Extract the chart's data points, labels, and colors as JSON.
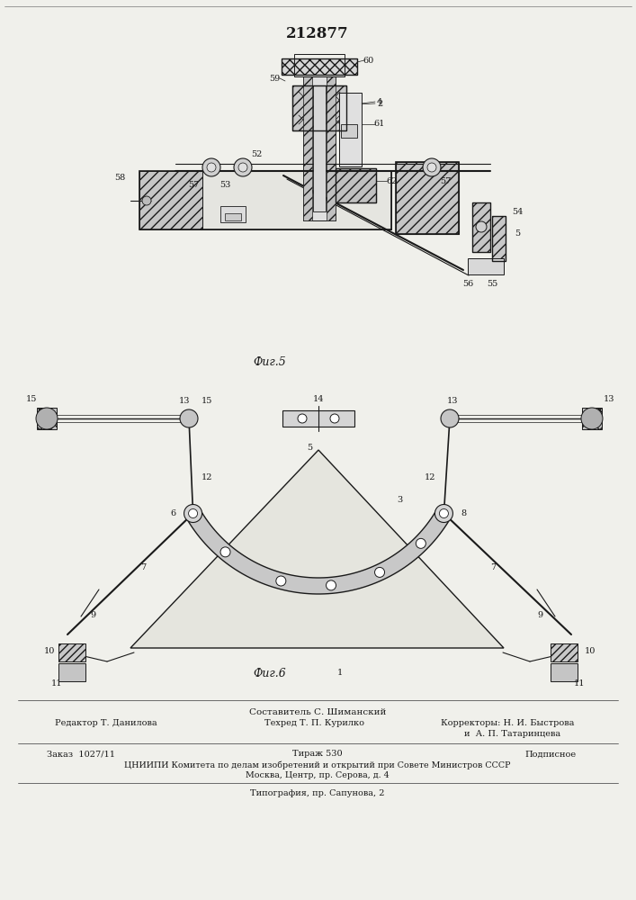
{
  "patent_number": "212877",
  "background_color": "#f0f0eb",
  "drawing_color": "#1a1a1a",
  "fig5_label": "Фиг.5",
  "fig6_label": "Фиг.6",
  "footer_line1": "Составитель С. Шиманский",
  "footer_line2_left": "Редактор Т. Данилова",
  "footer_line2_mid": "Техред Т. П. Курилко",
  "footer_line2_right": "Корректоры: Н. И. Быстрова",
  "footer_line3_right": "и  А. П. Татаринцева",
  "footer_line4_left": "Заказ  1027/11",
  "footer_line4_mid": "Тираж 530",
  "footer_line4_right": "Подписное",
  "footer_line5": "ЦНИИПИ Комитета по делам изобретений и открытий при Совете Министров СССР",
  "footer_line6": "Москва, Центр, пр. Серова, д. 4",
  "footer_line7": "Типография, пр. Сапунова, 2"
}
